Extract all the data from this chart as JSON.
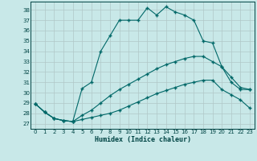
{
  "title": "",
  "xlabel": "Humidex (Indice chaleur)",
  "bg_color": "#c8e8e8",
  "grid_color": "#b0c8c8",
  "line_color": "#006868",
  "xlim": [
    -0.5,
    23.5
  ],
  "ylim": [
    26.5,
    38.8
  ],
  "yticks": [
    27,
    28,
    29,
    30,
    31,
    32,
    33,
    34,
    35,
    36,
    37,
    38
  ],
  "xticks": [
    0,
    1,
    2,
    3,
    4,
    5,
    6,
    7,
    8,
    9,
    10,
    11,
    12,
    13,
    14,
    15,
    16,
    17,
    18,
    19,
    20,
    21,
    22,
    23
  ],
  "curve1_x": [
    0,
    1,
    2,
    3,
    4,
    5,
    6,
    7,
    8,
    9,
    10,
    11,
    12,
    13,
    14,
    15,
    16,
    17,
    18,
    19,
    20,
    21,
    22,
    23
  ],
  "curve1_y": [
    28.9,
    28.1,
    27.5,
    27.3,
    27.2,
    30.4,
    31.0,
    34.0,
    35.5,
    37.0,
    37.0,
    37.0,
    38.2,
    37.5,
    38.3,
    37.8,
    37.5,
    37.0,
    35.0,
    34.8,
    32.5,
    31.0,
    30.3,
    30.3
  ],
  "curve2_x": [
    0,
    1,
    2,
    3,
    4,
    5,
    6,
    7,
    8,
    9,
    10,
    11,
    12,
    13,
    14,
    15,
    16,
    17,
    18,
    19,
    20,
    21,
    22,
    23
  ],
  "curve2_y": [
    28.9,
    28.1,
    27.5,
    27.3,
    27.2,
    27.8,
    28.3,
    29.0,
    29.7,
    30.3,
    30.8,
    31.3,
    31.8,
    32.3,
    32.7,
    33.0,
    33.3,
    33.5,
    33.5,
    33.0,
    32.5,
    31.5,
    30.5,
    30.3
  ],
  "curve3_x": [
    0,
    1,
    2,
    3,
    4,
    5,
    6,
    7,
    8,
    9,
    10,
    11,
    12,
    13,
    14,
    15,
    16,
    17,
    18,
    19,
    20,
    21,
    22,
    23
  ],
  "curve3_y": [
    28.9,
    28.1,
    27.5,
    27.3,
    27.2,
    27.4,
    27.6,
    27.8,
    28.0,
    28.3,
    28.7,
    29.1,
    29.5,
    29.9,
    30.2,
    30.5,
    30.8,
    31.0,
    31.2,
    31.2,
    30.3,
    29.8,
    29.3,
    28.5
  ]
}
